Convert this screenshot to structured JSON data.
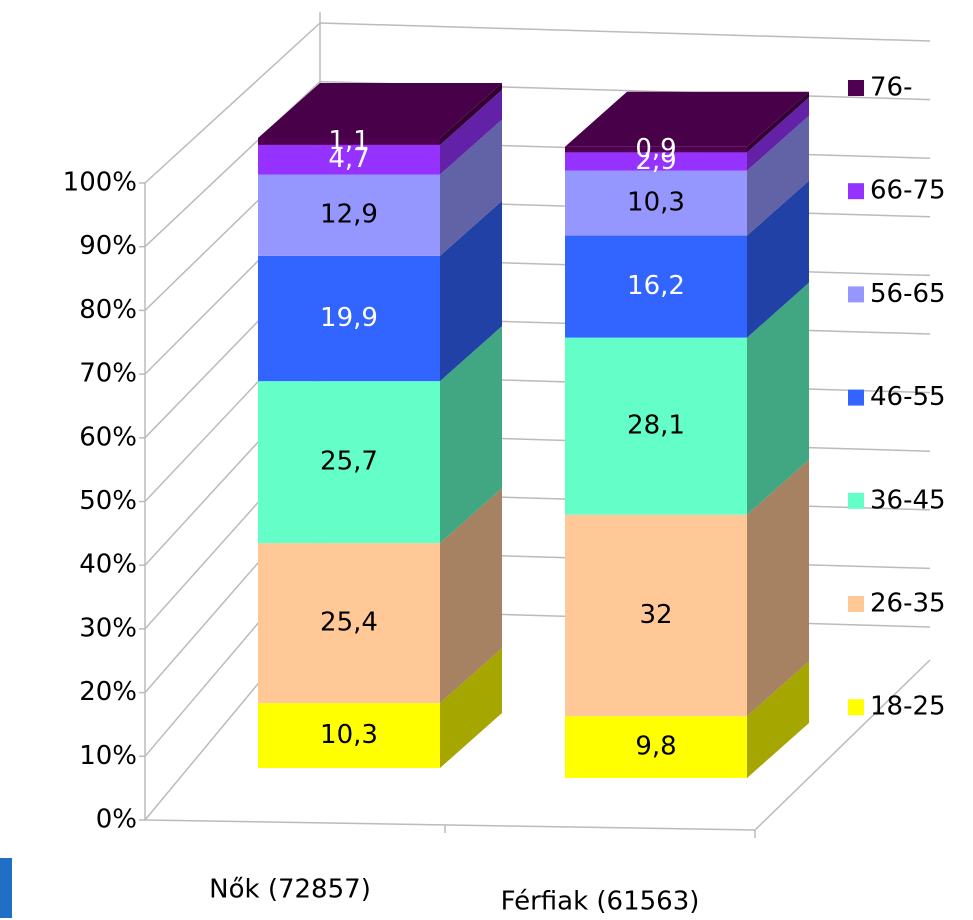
{
  "chart_data": {
    "type": "bar3d_stacked",
    "categories": [
      "Nők (72857)",
      "Férfiak (61563)"
    ],
    "series": [
      {
        "name": "18-25",
        "color": "#ffff00",
        "values": [
          10.3,
          9.8
        ],
        "value_labels": [
          "10,3",
          "9,8"
        ]
      },
      {
        "name": "26-35",
        "color": "#ffc896",
        "values": [
          25.4,
          32
        ],
        "value_labels": [
          "25,4",
          "32"
        ]
      },
      {
        "name": "36-45",
        "color": "#64ffc8",
        "values": [
          25.7,
          28.1
        ],
        "value_labels": [
          "25,7",
          "28,1"
        ]
      },
      {
        "name": "46-55",
        "color": "#3264ff",
        "values": [
          19.9,
          16.2
        ],
        "value_labels": [
          "19,9",
          "16,2"
        ]
      },
      {
        "name": "56-65",
        "color": "#9696ff",
        "values": [
          12.9,
          10.3
        ],
        "value_labels": [
          "12,9",
          "10,3"
        ]
      },
      {
        "name": "66-75",
        "color": "#9632ff",
        "values": [
          4.7,
          2.9
        ],
        "value_labels": [
          "4,7",
          "2,9"
        ]
      },
      {
        "name": "76-",
        "color": "#500050",
        "values": [
          1.1,
          0.9
        ],
        "value_labels": [
          "1,1",
          "0,9"
        ]
      }
    ],
    "ylim": [
      0,
      100
    ],
    "yticks": [
      {
        "value": 0,
        "label": "0%"
      },
      {
        "value": 10,
        "label": "10%"
      },
      {
        "value": 20,
        "label": "20%"
      },
      {
        "value": 30,
        "label": "30%"
      },
      {
        "value": 40,
        "label": "40%"
      },
      {
        "value": 50,
        "label": "50%"
      },
      {
        "value": 60,
        "label": "60%"
      },
      {
        "value": 70,
        "label": "70%"
      },
      {
        "value": 80,
        "label": "80%"
      },
      {
        "value": 90,
        "label": "90%"
      },
      {
        "value": 100,
        "label": "100%"
      }
    ],
    "grid": true,
    "legend": "right"
  }
}
